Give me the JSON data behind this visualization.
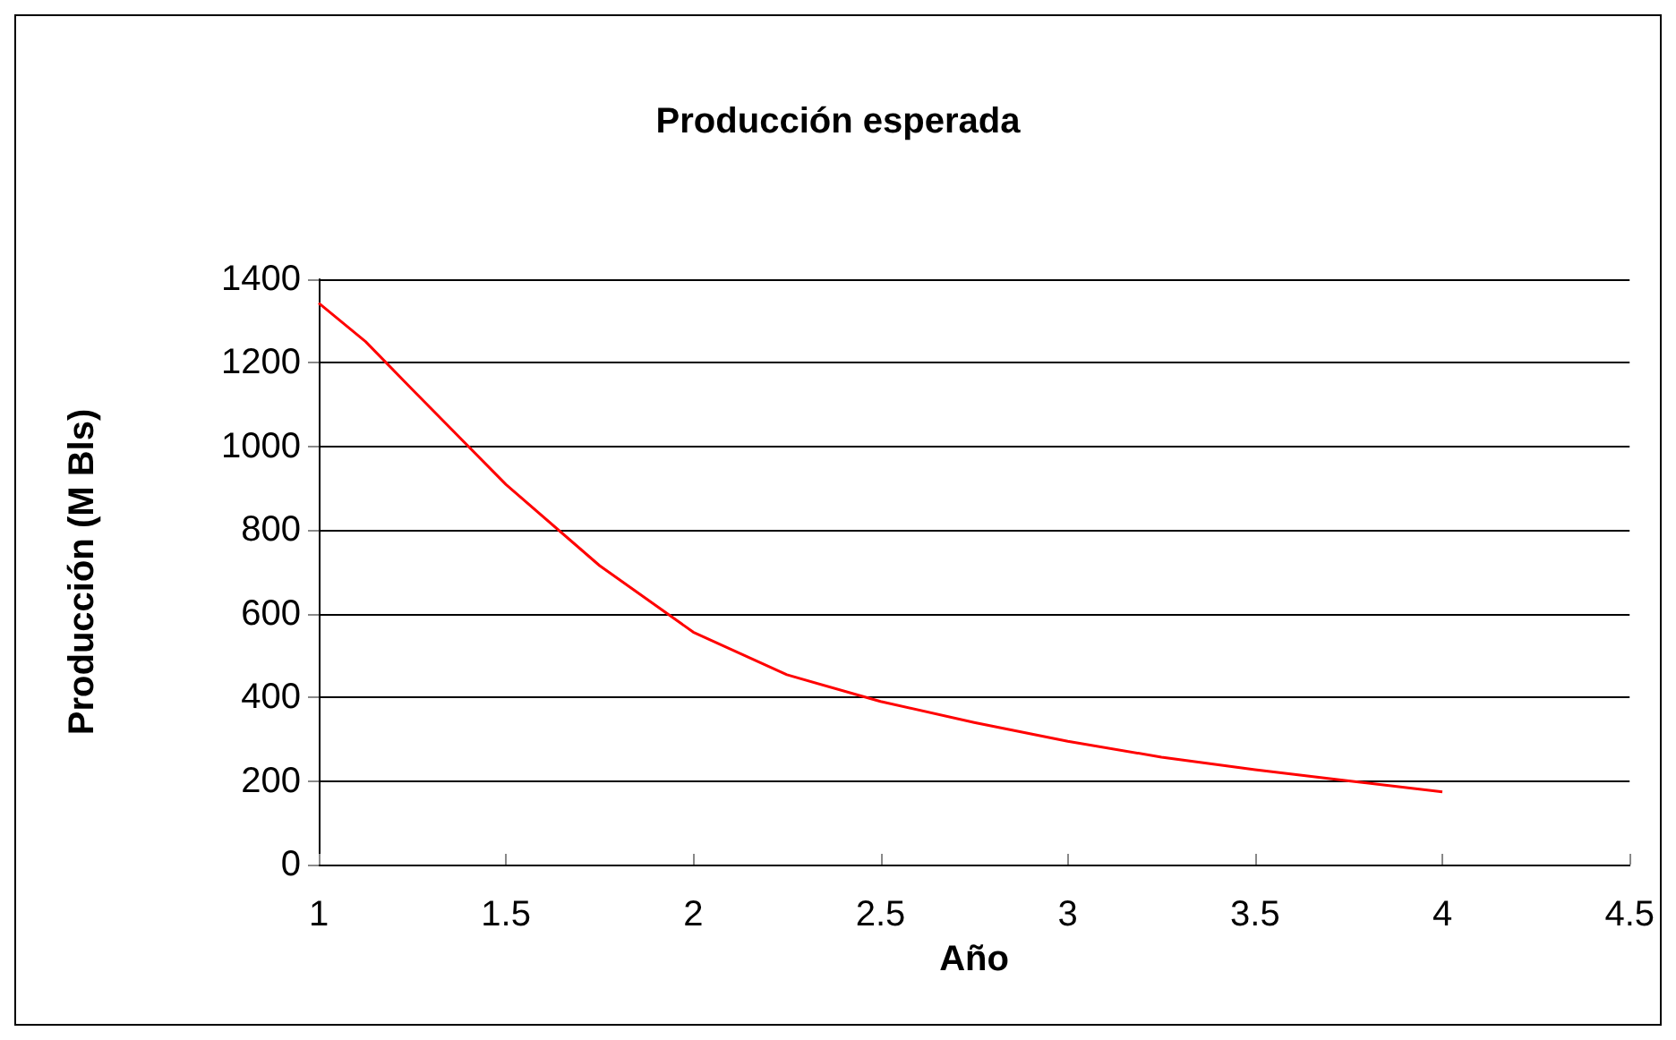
{
  "chart_data": {
    "type": "line",
    "title": "Producción esperada",
    "xlabel": "Año",
    "ylabel": "Producción (M Bls)",
    "x": [
      1,
      1.125,
      1.25,
      1.5,
      1.75,
      2,
      2.25,
      2.5,
      2.75,
      3,
      3.25,
      3.5,
      3.75,
      4
    ],
    "series": [
      {
        "color": "#ff0000",
        "values": [
          1343,
          1251,
          1136,
          909,
          715,
          556,
          454,
          390,
          340,
          295,
          257,
          227,
          200,
          174
        ]
      }
    ],
    "xlim": [
      1,
      4.5
    ],
    "xticks": [
      1,
      1.5,
      2,
      2.5,
      3,
      3.5,
      4,
      4.5
    ],
    "ylim": [
      0,
      1400
    ],
    "yticks": [
      0,
      200,
      400,
      600,
      800,
      1000,
      1200,
      1400
    ],
    "grid": "y",
    "marker": "none",
    "line_style": "solid"
  }
}
